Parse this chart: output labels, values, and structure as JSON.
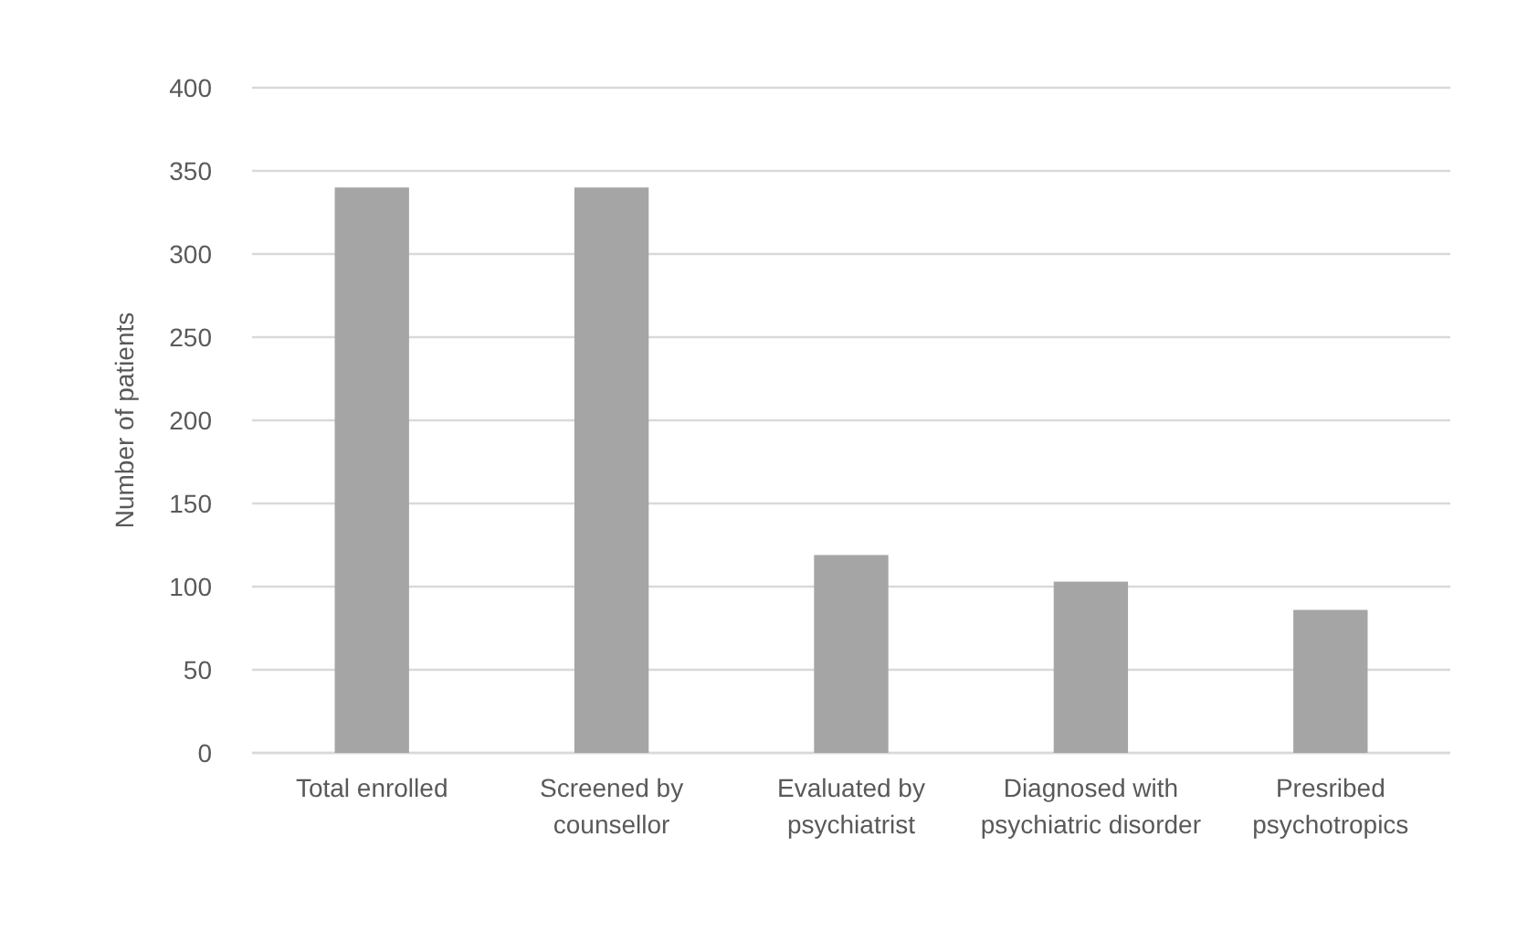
{
  "chart_data": {
    "type": "bar",
    "ylabel": "Number  of patients",
    "categories": [
      "Total enrolled",
      "Screened by counsellor",
      "Evaluated by psychiatrist",
      "Diagnosed with psychiatric disorder",
      "Presribed psychotropics"
    ],
    "values": [
      340,
      340,
      119,
      103,
      86
    ],
    "color": "#a5a5a5",
    "ylim": [
      0,
      400
    ],
    "yticks": [
      0,
      50,
      100,
      150,
      200,
      250,
      300,
      350,
      400
    ],
    "grid": "y"
  }
}
